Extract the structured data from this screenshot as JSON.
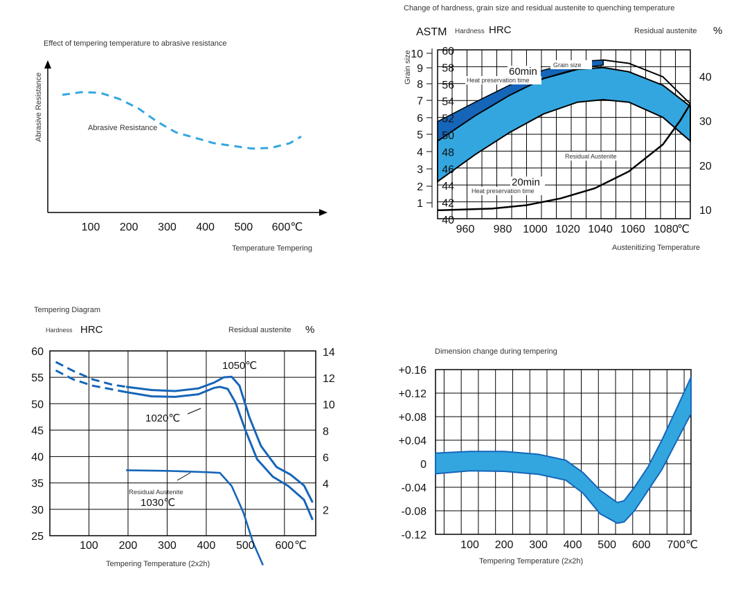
{
  "palette": {
    "blue_dark": "#1565b8",
    "blue_light": "#33a6e0",
    "blue_mid": "#2a8fd6",
    "black": "#000000",
    "grid": "#000000"
  },
  "chart_data": [
    {
      "id": "abrasive",
      "type": "line",
      "title": "Effect of tempering temperature to abrasive resistance",
      "ylabel": "Abrasive Resistance",
      "xlabel": "Temperature Tempering",
      "x_ticks": [
        "100",
        "200",
        "300",
        "400",
        "500",
        "600℃"
      ],
      "x_tick_values": [
        100,
        200,
        300,
        400,
        500,
        600
      ],
      "xlim": [
        0,
        700
      ],
      "ylim": [
        0,
        100
      ],
      "series": [
        {
          "name": "Abrasive Resistance",
          "style": "dashed",
          "color": "#33a6e0",
          "x": [
            20,
            70,
            120,
            170,
            220,
            270,
            320,
            370,
            420,
            470,
            520,
            570,
            620,
            650
          ],
          "y": [
            84,
            86,
            85.5,
            81,
            74,
            64,
            56,
            52,
            48,
            46,
            44,
            44.5,
            48,
            53
          ]
        }
      ]
    },
    {
      "id": "quench",
      "type": "area",
      "title": "Change of hardness, grain size and residual austenite to quenching temperature",
      "corner_left_main": "ASTM",
      "corner_left_small": "Hardness",
      "corner_left_unit": "HRC",
      "corner_right": "Residual austenite",
      "corner_right_unit": "%",
      "grain_axis_label": "Grain size",
      "xlabel": "Austenitizing Temperature",
      "x_ticks": [
        "960",
        "980",
        "1000",
        "1020",
        "1040",
        "1060",
        "1080",
        "℃"
      ],
      "x_tick_values": [
        960,
        980,
        1000,
        1020,
        1040,
        1060,
        1080
      ],
      "xlim": [
        948,
        1096
      ],
      "astm_ticks": [
        "10",
        "9",
        "8",
        "7",
        "6",
        "5",
        "4",
        "3",
        "2",
        "1"
      ],
      "hrc_ticks": [
        "60",
        "58",
        "56",
        "54",
        "52",
        "50",
        "48",
        "46",
        "44",
        "42",
        "40"
      ],
      "hrc_tick_values": [
        60,
        58,
        56,
        54,
        52,
        50,
        48,
        46,
        44,
        42,
        40
      ],
      "ylim": [
        40,
        60
      ],
      "ra_ticks": [
        "40",
        "30",
        "20",
        "10"
      ],
      "ra_tick_values": [
        40,
        30,
        20,
        10
      ],
      "ra_lim": [
        8,
        46
      ],
      "annotations": {
        "grain_size": "Grain size",
        "min60": "60min",
        "heat_top": "Heat preservation time",
        "residual": "Residual Austenite",
        "min20": "20min",
        "heat_bottom": "Heat preservation time"
      },
      "series": [
        {
          "name": "Grain size",
          "x": [
            948,
            970,
            990,
            1010,
            1030,
            1045
          ],
          "y_low": [
            49.2,
            52.2,
            54.6,
            56.6,
            57.8,
            58.2
          ],
          "y_high": [
            51.5,
            53.8,
            55.8,
            57.6,
            58.6,
            58.8
          ]
        },
        {
          "name": "60min band",
          "x": [
            948,
            970,
            990,
            1010,
            1030,
            1045,
            1060,
            1080,
            1096
          ],
          "y_low": [
            44.4,
            47.6,
            50.2,
            52.4,
            53.8,
            54.1,
            53.8,
            52.0,
            49.2
          ],
          "y_high": [
            49.2,
            52.2,
            54.6,
            56.6,
            57.7,
            57.9,
            57.4,
            55.8,
            53.3
          ]
        },
        {
          "name": "20min",
          "x": [
            948,
            980,
            1000,
            1020,
            1040,
            1060,
            1080,
            1090,
            1096
          ],
          "y": [
            41.0,
            41.2,
            41.6,
            42.4,
            43.6,
            45.6,
            48.8,
            51.6,
            53.6
          ]
        },
        {
          "name": "Upper outline",
          "x": [
            1045,
            1060,
            1080,
            1096
          ],
          "y": [
            58.8,
            58.4,
            56.8,
            53.6
          ]
        }
      ]
    },
    {
      "id": "tempering",
      "type": "line",
      "title": "Tempering Diagram",
      "corner_left_small": "Hardness",
      "corner_left_unit": "HRC",
      "corner_right": "Residual austenite",
      "corner_right_unit": "%",
      "xlabel": "Tempering Temperature (2x2h)",
      "x_ticks": [
        "100",
        "200",
        "300",
        "400",
        "500",
        "600",
        "℃"
      ],
      "x_tick_values": [
        100,
        200,
        300,
        400,
        500,
        600
      ],
      "xlim": [
        0,
        680
      ],
      "y_ticks": [
        "60",
        "55",
        "50",
        "45",
        "40",
        "35",
        "30",
        "25"
      ],
      "y_tick_values": [
        60,
        55,
        50,
        45,
        40,
        35,
        30,
        25
      ],
      "ylim": [
        25,
        60
      ],
      "ra_ticks": [
        "14",
        "12",
        "10",
        "8",
        "6",
        "4",
        "2"
      ],
      "ra_tick_values": [
        14,
        12,
        10,
        8,
        6,
        4,
        2
      ],
      "ra_lim": [
        0,
        14
      ],
      "labels": {
        "c1050": "1050℃",
        "c1020": "1020℃",
        "residual": "Residual Austenite",
        "c1030": "1030℃"
      },
      "series": [
        {
          "name": "1050℃ dashed",
          "style": "dashed",
          "x": [
            15,
            60,
            110,
            160,
            195
          ],
          "y": [
            57.9,
            56.2,
            54.6,
            53.6,
            53.2
          ]
        },
        {
          "name": "1050℃",
          "x": [
            195,
            260,
            320,
            380,
            420,
            445,
            465,
            485,
            510,
            540,
            580,
            615,
            650,
            672
          ],
          "y": [
            53.2,
            52.6,
            52.4,
            52.9,
            54.0,
            55.0,
            55.1,
            53.4,
            47.5,
            42.0,
            38.0,
            36.6,
            34.5,
            31.3
          ]
        },
        {
          "name": "1020℃ dashed",
          "style": "dashed",
          "x": [
            15,
            60,
            110,
            160,
            195
          ],
          "y": [
            56.3,
            54.6,
            53.4,
            52.7,
            52.2
          ]
        },
        {
          "name": "1020℃",
          "x": [
            195,
            260,
            320,
            380,
            420,
            435,
            455,
            475,
            500,
            530,
            570,
            610,
            650,
            672
          ],
          "y": [
            52.2,
            51.4,
            51.3,
            51.8,
            53.0,
            53.2,
            52.8,
            50.2,
            45.0,
            39.5,
            36.2,
            34.4,
            31.8,
            28.0
          ]
        },
        {
          "name": "Residual Austenite 1030℃",
          "x": [
            195,
            300,
            400,
            435,
            465,
            495,
            520,
            545
          ],
          "ra": [
            5.0,
            4.95,
            4.85,
            4.8,
            3.8,
            1.8,
            -0.5,
            -2.2
          ]
        }
      ]
    },
    {
      "id": "dimension",
      "type": "area",
      "title": "Dimension change during tempering",
      "xlabel": "Tempering Temperature (2x2h)",
      "x_ticks": [
        "100",
        "200",
        "300",
        "400",
        "500",
        "600",
        "700℃"
      ],
      "x_tick_values": [
        100,
        200,
        300,
        400,
        500,
        600,
        700
      ],
      "xlim": [
        0,
        745
      ],
      "y_ticks": [
        "+0.16",
        "+0.12",
        "+0.08",
        "+0.04",
        "0",
        "-0.04",
        "-0.08",
        "-0.12"
      ],
      "y_tick_values": [
        0.16,
        0.12,
        0.08,
        0.04,
        0,
        -0.04,
        -0.08,
        -0.12
      ],
      "ylim": [
        -0.12,
        0.16
      ],
      "series": [
        {
          "name": "Dimension change band",
          "x": [
            0,
            100,
            200,
            300,
            380,
            430,
            480,
            530,
            550,
            580,
            620,
            660,
            700,
            745
          ],
          "y_low": [
            -0.017,
            -0.012,
            -0.013,
            -0.018,
            -0.028,
            -0.05,
            -0.085,
            -0.101,
            -0.099,
            -0.08,
            -0.045,
            -0.01,
            0.035,
            0.085
          ],
          "y_high": [
            0.018,
            0.021,
            0.021,
            0.016,
            0.006,
            -0.015,
            -0.045,
            -0.066,
            -0.063,
            -0.04,
            -0.005,
            0.04,
            0.09,
            0.147
          ]
        }
      ]
    }
  ]
}
